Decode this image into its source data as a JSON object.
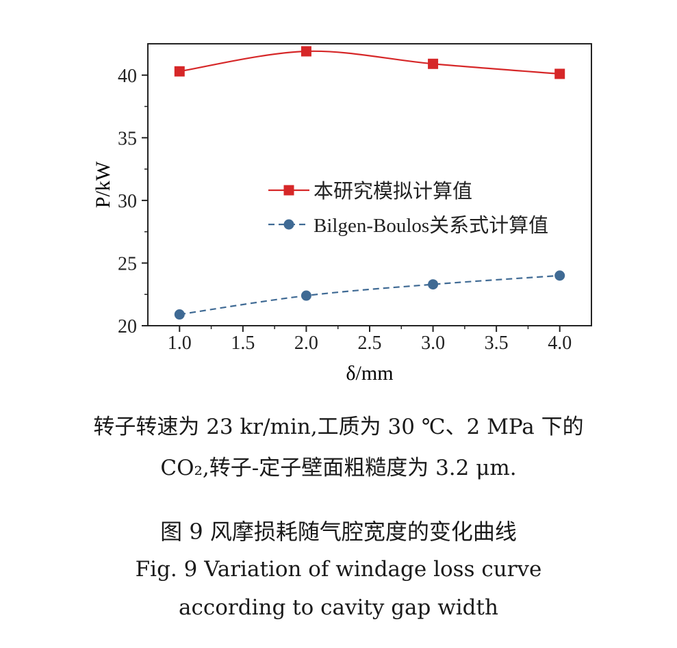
{
  "chart_data": {
    "type": "line",
    "xlabel": "δ/mm",
    "ylabel": "P/kW",
    "xlim": [
      0.75,
      4.25
    ],
    "ylim": [
      20,
      42.5
    ],
    "x_ticks": [
      "1.0",
      "1.5",
      "2.0",
      "2.5",
      "3.0",
      "3.5",
      "4.0"
    ],
    "y_ticks": [
      "20",
      "25",
      "30",
      "35",
      "40"
    ],
    "legend_position": "center-right",
    "grid": false,
    "series": [
      {
        "name": "本研究模拟计算值",
        "color": "#d62728",
        "marker": "square",
        "line": "solid",
        "x": [
          1.0,
          2.0,
          3.0,
          4.0
        ],
        "values": [
          40.3,
          41.9,
          40.9,
          40.1
        ]
      },
      {
        "name": "Bilgen-Boulos关系式计算值",
        "color": "#3f6a94",
        "marker": "circle",
        "line": "dashed",
        "x": [
          1.0,
          2.0,
          3.0,
          4.0
        ],
        "values": [
          20.9,
          22.4,
          23.3,
          24.0
        ]
      }
    ]
  },
  "captions": {
    "note_line1": "转子转速为 23 kr/min,工质为 30 ℃、2 MPa 下的",
    "note_line2": "CO₂,转子-定子壁面粗糙度为 3.2 μm.",
    "title_cn": "图 9   风摩损耗随气腔宽度的变化曲线",
    "title_en_line1": "Fig. 9   Variation of windage loss curve",
    "title_en_line2": "according to cavity gap width"
  }
}
